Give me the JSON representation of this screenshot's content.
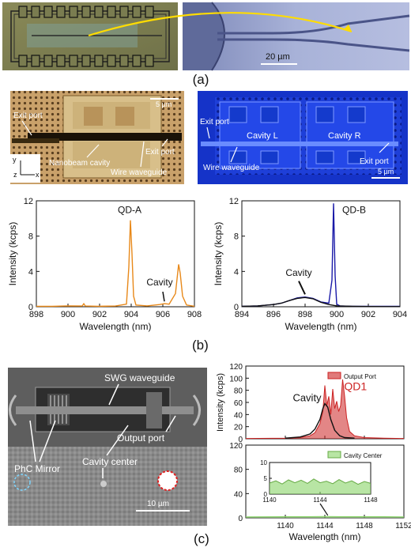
{
  "panel_a": {
    "label": "(a)",
    "scale_bar": "20 µm"
  },
  "panel_b": {
    "label": "(b)",
    "left_image": {
      "exit_port_left": "Exit port",
      "exit_port_right": "Exit port",
      "nanobeam_cavity": "Nanobeam cavity",
      "wire_waveguide": "Wire waveguide",
      "scale_bar": "5 µm",
      "axis_y": "y",
      "axis_z": "z",
      "axis_x": "x"
    },
    "right_image": {
      "exit_port_left": "Exit port",
      "exit_port_right": "Exit port",
      "cavity_l": "Cavity L",
      "cavity_r": "Cavity R",
      "wire_waveguide": "Wire waveguide",
      "scale_bar": "5 µm"
    }
  },
  "panel_c": {
    "label": "(c)",
    "image": {
      "swg_waveguide": "SWG waveguide",
      "output_port": "Output port",
      "cavity_center": "Cavity center",
      "phc_mirror": "PhC Mirror",
      "scale_bar": "10 µm"
    }
  },
  "colors": {
    "orange": "#e8891a",
    "blue": "#1a1aa8",
    "red": "#cc2222",
    "green": "#88d468"
  },
  "chart_data": [
    {
      "id": "b-left",
      "type": "line",
      "xlabel": "Wavelength (nm)",
      "ylabel": "Intensity (kcps)",
      "xlim": [
        898,
        908
      ],
      "ylim": [
        0,
        12
      ],
      "xticks": [
        "898",
        "900",
        "902",
        "904",
        "906",
        "908"
      ],
      "yticks": [
        "0",
        "4",
        "8",
        "12"
      ],
      "annotations": [
        {
          "text": "QD-A",
          "x": 903.9,
          "y": 10.6
        },
        {
          "text": "Cavity",
          "x": 905.8,
          "y": 2.4
        }
      ],
      "series": [
        {
          "color": "#e8891a",
          "x": [
            898,
            899,
            900,
            900.9,
            901,
            901.1,
            902,
            903,
            903.7,
            903.85,
            903.95,
            904.05,
            904.15,
            904.3,
            905,
            905.8,
            906.1,
            906.4,
            906.8,
            907,
            907.1,
            907.25,
            907.5,
            908
          ],
          "y": [
            0.05,
            0.05,
            0.1,
            0.08,
            0.35,
            0.08,
            0.05,
            0.08,
            0.3,
            4.5,
            9.8,
            6.0,
            1.2,
            0.2,
            0.1,
            0.25,
            0.35,
            0.3,
            1.5,
            4.8,
            3.8,
            1.2,
            0.2,
            0.05
          ]
        }
      ]
    },
    {
      "id": "b-right",
      "type": "line",
      "xlabel": "Wavelength (nm)",
      "ylabel": "Intensity (kcps)",
      "xlim": [
        894,
        904
      ],
      "ylim": [
        0,
        12
      ],
      "xticks": [
        "894",
        "896",
        "898",
        "900",
        "902",
        "904"
      ],
      "yticks": [
        "0",
        "4",
        "8",
        "12"
      ],
      "annotations": [
        {
          "text": "QD-B",
          "x": 901.1,
          "y": 10.6
        },
        {
          "text": "Cavity",
          "x": 897.6,
          "y": 3.5
        }
      ],
      "series": [
        {
          "color": "#1a1aa8",
          "x": [
            894,
            895,
            896,
            896.5,
            897,
            897.5,
            898,
            898.5,
            899,
            899.5,
            899.7,
            899.8,
            899.9,
            900,
            900.2,
            901,
            902,
            903,
            904
          ],
          "y": [
            0.05,
            0.1,
            0.25,
            0.4,
            0.7,
            1.0,
            1.1,
            0.95,
            0.55,
            0.4,
            3.0,
            11.7,
            3.5,
            0.3,
            0.1,
            0.05,
            0.05,
            0.05,
            0.05
          ]
        },
        {
          "color": "#111111",
          "x": [
            894,
            895,
            896,
            896.5,
            897,
            897.5,
            898,
            898.5,
            899,
            899.5,
            900,
            901,
            902,
            903,
            904
          ],
          "y": [
            0.05,
            0.1,
            0.25,
            0.4,
            0.7,
            0.95,
            1.05,
            0.9,
            0.5,
            0.25,
            0.1,
            0.05,
            0.03,
            0.02,
            0.02
          ]
        }
      ]
    },
    {
      "id": "c-top",
      "type": "area",
      "ylabel": "Intensity (kcps)",
      "xlim": [
        1136,
        1152
      ],
      "ylim": [
        0,
        120
      ],
      "yticks": [
        "0",
        "20",
        "40",
        "60",
        "80",
        "100",
        "120"
      ],
      "legend": "Output Port",
      "legend_position": "top-right",
      "annotations": [
        {
          "text": "Cavity",
          "x": 1142.2,
          "y": 62
        },
        {
          "text": "QD1",
          "x": 1147.1,
          "y": 80
        }
      ],
      "series": [
        {
          "name": "Output Port",
          "color": "#cc2222",
          "x": [
            1136,
            1140,
            1141.5,
            1142.5,
            1143,
            1143.5,
            1143.8,
            1144.0,
            1144.2,
            1144.4,
            1144.6,
            1144.8,
            1145.0,
            1145.2,
            1145.4,
            1145.6,
            1145.8,
            1146.0,
            1146.2,
            1146.5,
            1147,
            1148,
            1150,
            1152
          ],
          "y": [
            0.5,
            1,
            2,
            5,
            10,
            25,
            45,
            88,
            55,
            70,
            40,
            82,
            50,
            62,
            45,
            55,
            98,
            70,
            35,
            12,
            5,
            2,
            1,
            0.5
          ]
        },
        {
          "color": "#111111",
          "x": [
            1140,
            1141.5,
            1142.5,
            1143,
            1143.5,
            1143.8,
            1144.0,
            1144.3,
            1144.6,
            1145,
            1145.5,
            1146,
            1147
          ],
          "y": [
            1,
            3,
            8,
            16,
            32,
            50,
            58,
            52,
            32,
            14,
            5,
            2,
            1
          ]
        }
      ]
    },
    {
      "id": "c-bottom",
      "type": "area",
      "xlabel": "Wavelength (nm)",
      "xlim": [
        1136,
        1152
      ],
      "ylim": [
        0,
        120
      ],
      "xticks": [
        "1140",
        "1144",
        "1148",
        "1152"
      ],
      "yticks": [
        "0",
        "40",
        "80",
        "120"
      ],
      "legend": "Cavity Center",
      "legend_position": "top-right",
      "series": [
        {
          "name": "Cavity Center",
          "color": "#88d468",
          "x": [
            1136,
            1140,
            1142,
            1144,
            1146,
            1148,
            1150,
            1152
          ],
          "y": [
            1.5,
            2,
            2,
            2.2,
            2,
            2,
            2,
            1.5
          ]
        }
      ],
      "inset": {
        "xlim": [
          1140,
          1148
        ],
        "ylim": [
          0,
          10
        ],
        "xticks": [
          "1140",
          "1144",
          "1148"
        ],
        "yticks": [
          "0",
          "5",
          "10"
        ],
        "series": [
          {
            "color": "#88d468",
            "x": [
              1140,
              1140.5,
              1141,
              1141.5,
              1142,
              1142.5,
              1143,
              1143.5,
              1144,
              1144.5,
              1145,
              1145.5,
              1146,
              1146.5,
              1147,
              1147.5,
              1148
            ],
            "y": [
              3.5,
              4.2,
              3.2,
              4.5,
              3.6,
              4.4,
              3.4,
              4.8,
              3.6,
              4.1,
              3.3,
              4.6,
              3.5,
              4.2,
              3.1,
              4.0,
              3.4
            ]
          }
        ]
      }
    }
  ]
}
